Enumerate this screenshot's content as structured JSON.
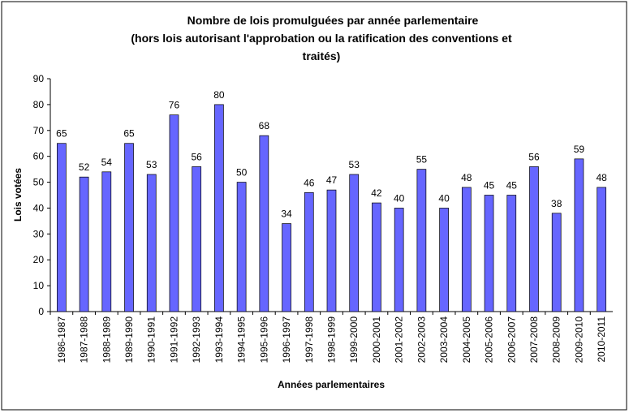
{
  "chart_data": {
    "type": "bar",
    "title": [
      "Nombre de lois promulguées par année parlementaire",
      "(hors lois autorisant l'approbation ou la ratification des conventions et",
      "traités)"
    ],
    "xlabel": "Années parlementaires",
    "ylabel": "Lois votées",
    "categories": [
      "1986-1987",
      "1987-1988",
      "1988-1989",
      "1989-1990",
      "1990-1991",
      "1991-1992",
      "1992-1993",
      "1993-1994",
      "1994-1995",
      "1995-1996",
      "1996-1997",
      "1997-1998",
      "1998-1999",
      "1999-2000",
      "2000-2001",
      "2001-2002",
      "2002-2003",
      "2003-2004",
      "2004-2005",
      "2005-2006",
      "2006-2007",
      "2007-2008",
      "2008-2009",
      "2009-2010",
      "2010-2011"
    ],
    "values": [
      65,
      52,
      54,
      65,
      53,
      76,
      56,
      80,
      50,
      68,
      34,
      46,
      47,
      53,
      42,
      40,
      55,
      40,
      48,
      45,
      45,
      56,
      38,
      59,
      48
    ],
    "color": "#6666ff",
    "ylim": [
      0,
      90
    ],
    "yticks": [
      0,
      10,
      20,
      30,
      40,
      50,
      60,
      70,
      80,
      90
    ]
  }
}
